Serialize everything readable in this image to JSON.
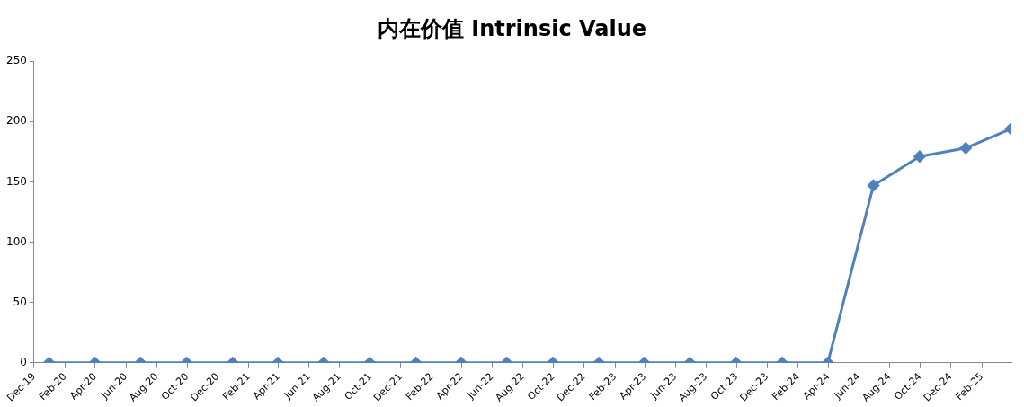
{
  "chart_data": {
    "type": "line",
    "title": "内在价值 Intrinsic Value",
    "x": [
      "2019-12-31",
      "2020-03-31",
      "2020-06-30",
      "2020-09-30",
      "2020-12-31",
      "2021-03-31",
      "2021-06-30",
      "2021-09-30",
      "2021-12-31",
      "2022-03-31",
      "2022-06-30",
      "2022-09-30",
      "2022-12-31",
      "2023-03-31",
      "2023-06-30",
      "2023-09-30",
      "2023-12-31",
      "2024-03-31",
      "2024-06-30",
      "2024-09-30",
      "2024-12-31",
      "2025-03-31"
    ],
    "series": [
      {
        "color": "#4f81bd",
        "values": [
          0,
          0,
          0,
          0,
          0,
          0,
          0,
          0,
          0,
          0,
          0,
          0,
          0,
          0,
          0,
          0,
          0,
          0,
          147,
          171,
          178,
          194
        ]
      }
    ],
    "xlim": [
      "2019-12-01",
      "2025-04-01"
    ],
    "xticks": [
      {
        "value": "2019-12-01",
        "label": "Dec-19"
      },
      {
        "value": "2020-02-01",
        "label": "Feb-20"
      },
      {
        "value": "2020-04-01",
        "label": "Apr-20"
      },
      {
        "value": "2020-06-01",
        "label": "Jun-20"
      },
      {
        "value": "2020-08-01",
        "label": "Aug-20"
      },
      {
        "value": "2020-10-01",
        "label": "Oct-20"
      },
      {
        "value": "2020-12-01",
        "label": "Dec-20"
      },
      {
        "value": "2021-02-01",
        "label": "Feb-21"
      },
      {
        "value": "2021-04-01",
        "label": "Apr-21"
      },
      {
        "value": "2021-06-01",
        "label": "Jun-21"
      },
      {
        "value": "2021-08-01",
        "label": "Aug-21"
      },
      {
        "value": "2021-10-01",
        "label": "Oct-21"
      },
      {
        "value": "2021-12-01",
        "label": "Dec-21"
      },
      {
        "value": "2022-02-01",
        "label": "Feb-22"
      },
      {
        "value": "2022-04-01",
        "label": "Apr-22"
      },
      {
        "value": "2022-06-01",
        "label": "Jun-22"
      },
      {
        "value": "2022-08-01",
        "label": "Aug-22"
      },
      {
        "value": "2022-10-01",
        "label": "Oct-22"
      },
      {
        "value": "2022-12-01",
        "label": "Dec-22"
      },
      {
        "value": "2023-02-01",
        "label": "Feb-23"
      },
      {
        "value": "2023-04-01",
        "label": "Apr-23"
      },
      {
        "value": "2023-06-01",
        "label": "Jun-23"
      },
      {
        "value": "2023-08-01",
        "label": "Aug-23"
      },
      {
        "value": "2023-10-01",
        "label": "Oct-23"
      },
      {
        "value": "2023-12-01",
        "label": "Dec-23"
      },
      {
        "value": "2024-02-01",
        "label": "Feb-24"
      },
      {
        "value": "2024-04-01",
        "label": "Apr-24"
      },
      {
        "value": "2024-06-01",
        "label": "Jun-24"
      },
      {
        "value": "2024-08-01",
        "label": "Aug-24"
      },
      {
        "value": "2024-10-01",
        "label": "Oct-24"
      },
      {
        "value": "2024-12-01",
        "label": "Dec-24"
      },
      {
        "value": "2025-02-01",
        "label": "Feb-25"
      }
    ],
    "ylim": [
      0,
      250
    ],
    "yticks": [
      0,
      50,
      100,
      150,
      200,
      250
    ],
    "grid": false,
    "legend": false,
    "marker": "diamond",
    "line_style": "solid"
  }
}
